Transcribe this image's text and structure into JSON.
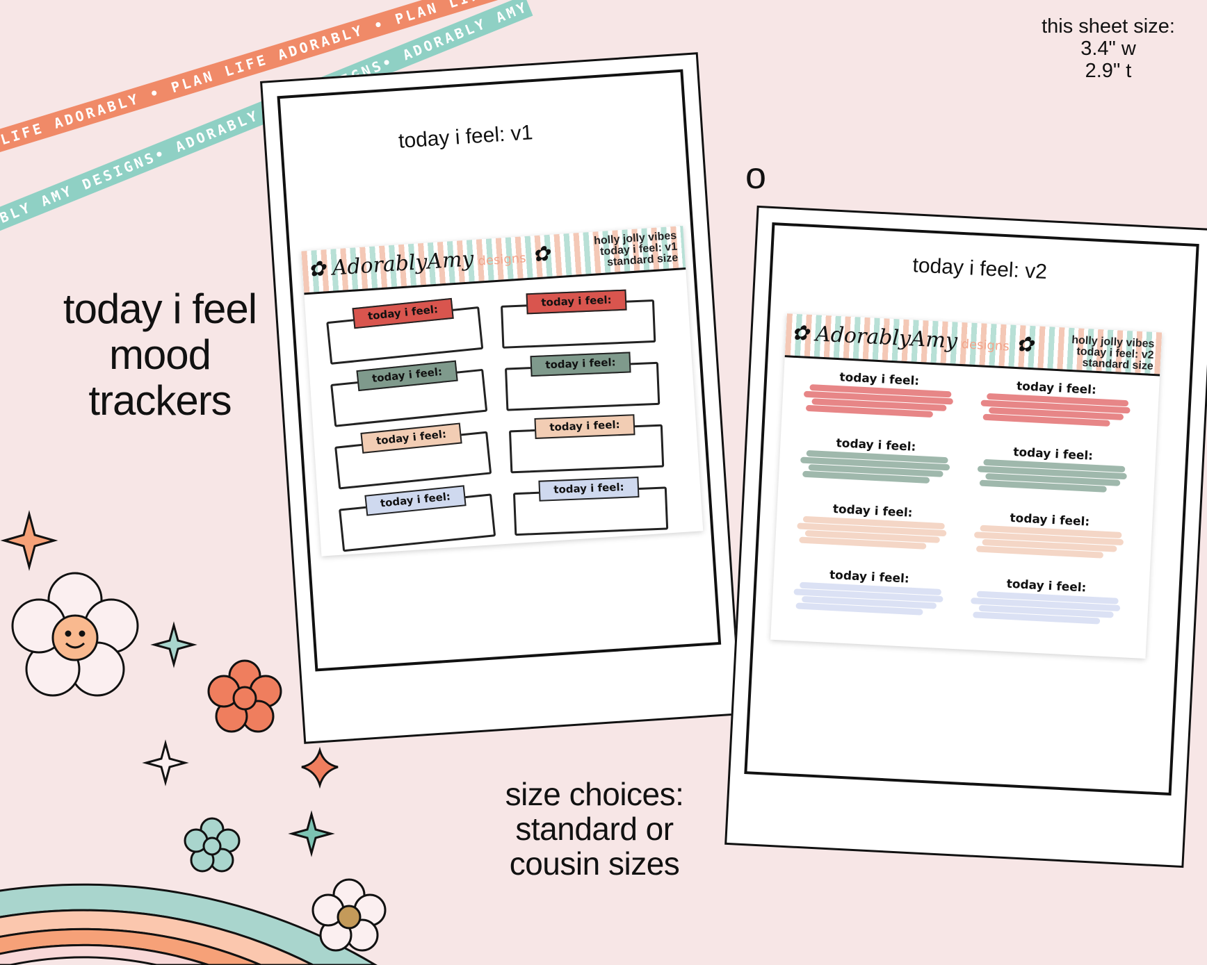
{
  "ribbons": {
    "orange_text": "PLAN LIFE ADORABLY • PLAN LIFE ADORABLY • PLAN LIFE ADORABLY •",
    "teal_text": "ADORABLY AMY DESIGNS• ADORABLY AMY DESIGNS• ADORABLY AMY DESIGNS•",
    "orange_color": "#f08a68",
    "teal_color": "#8fd0c4"
  },
  "sheet_size": {
    "line1": "this sheet size:",
    "line2": "3.4\" w",
    "line3": "2.9\" t"
  },
  "headline": {
    "line1": "today i feel",
    "line2": "mood",
    "line3": "trackers"
  },
  "separator": "o",
  "size_choices": {
    "line1": "size choices:",
    "line2": "standard or",
    "line3": "cousin sizes"
  },
  "frame_v1": {
    "title": "today i feel: v1",
    "logo": "AdorablyAmy",
    "logo_suffix": "designs",
    "header_line1": "holly jolly vibes",
    "header_line2": "today i feel: v1",
    "header_line3": "standard size",
    "label": "today i feel:",
    "label_colors": [
      "#d9554e",
      "#d9554e",
      "#7f9a8c",
      "#7f9a8c",
      "#f2cdb4",
      "#f2cdb4",
      "#cfd9ef",
      "#cfd9ef"
    ]
  },
  "frame_v2": {
    "title": "today i feel: v2",
    "logo": "AdorablyAmy",
    "logo_suffix": "designs",
    "header_line1": "holly jolly vibes",
    "header_line2": "today i feel: v2",
    "header_line3": "standard size",
    "label": "today i feel:",
    "stroke_colors": [
      "#e4797a",
      "#e4797a",
      "#95b0a3",
      "#95b0a3",
      "#f3d2c0",
      "#f3d2c0",
      "#d7def3",
      "#d7def3"
    ]
  },
  "rainbow_colors": [
    "#a9d5cd",
    "#fbc7ae",
    "#f6a178",
    "#f8d8d8"
  ]
}
